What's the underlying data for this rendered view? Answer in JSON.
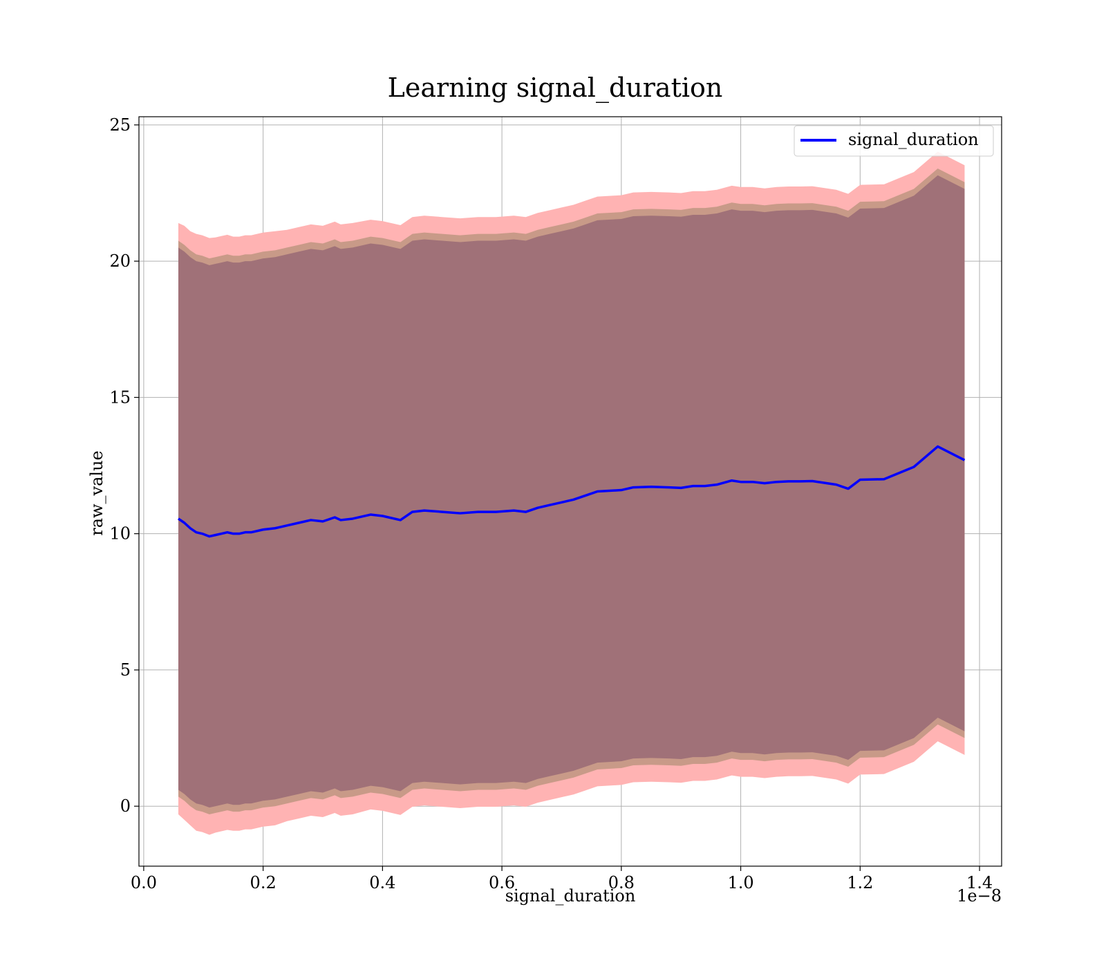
{
  "chart_data": {
    "type": "line",
    "title": "Learning signal_duration",
    "xlabel": "signal_duration",
    "ylabel": "raw_value",
    "x_offset_label": "1e−8",
    "xlim": [
      -0.008,
      1.437
    ],
    "ylim": [
      -2.2,
      25.3
    ],
    "xticks": [
      0.0,
      0.2,
      0.4,
      0.6,
      0.8,
      1.0,
      1.2,
      1.4
    ],
    "xtick_labels": [
      "0.0",
      "0.2",
      "0.4",
      "0.6",
      "0.8",
      "1.0",
      "1.2",
      "1.4"
    ],
    "yticks": [
      0,
      5,
      10,
      15,
      20,
      25
    ],
    "ytick_labels": [
      "0",
      "5",
      "10",
      "15",
      "20",
      "25"
    ],
    "grid": true,
    "legend": {
      "position": "upper right",
      "entries": [
        "signal_duration"
      ]
    },
    "colors": {
      "line": "#0000ff",
      "outer_band": "#ffb3b3",
      "middle_band": "#c89a88",
      "inner_band": "#a07178",
      "grid": "#b0b0b0"
    },
    "series": [
      {
        "name": "signal_duration",
        "x": [
          0.058,
          0.068,
          0.078,
          0.088,
          0.098,
          0.11,
          0.12,
          0.13,
          0.14,
          0.15,
          0.16,
          0.17,
          0.18,
          0.2,
          0.22,
          0.24,
          0.26,
          0.28,
          0.3,
          0.32,
          0.33,
          0.35,
          0.38,
          0.4,
          0.43,
          0.45,
          0.47,
          0.5,
          0.53,
          0.56,
          0.59,
          0.62,
          0.64,
          0.66,
          0.68,
          0.7,
          0.72,
          0.74,
          0.76,
          0.8,
          0.82,
          0.85,
          0.88,
          0.9,
          0.92,
          0.94,
          0.96,
          0.985,
          1.0,
          1.02,
          1.04,
          1.06,
          1.08,
          1.1,
          1.12,
          1.16,
          1.18,
          1.2,
          1.24,
          1.29,
          1.33,
          1.375
        ],
        "mean": [
          10.55,
          10.4,
          10.2,
          10.05,
          10.0,
          9.9,
          9.95,
          10.0,
          10.05,
          10.0,
          10.0,
          10.05,
          10.05,
          10.15,
          10.2,
          10.3,
          10.4,
          10.5,
          10.45,
          10.6,
          10.5,
          10.55,
          10.7,
          10.65,
          10.5,
          10.8,
          10.85,
          10.8,
          10.75,
          10.8,
          10.8,
          10.85,
          10.8,
          10.95,
          11.05,
          11.15,
          11.25,
          11.4,
          11.55,
          11.6,
          11.7,
          11.72,
          11.7,
          11.68,
          11.75,
          11.75,
          11.8,
          11.95,
          11.9,
          11.9,
          11.85,
          11.9,
          11.92,
          11.92,
          11.93,
          11.8,
          11.65,
          11.98,
          12.0,
          12.45,
          13.2,
          12.7
        ],
        "band_outer": [
          10.85,
          10.9,
          10.9,
          10.95,
          10.95,
          10.95,
          10.92,
          10.92,
          10.92,
          10.9,
          10.9,
          10.9,
          10.9,
          10.9,
          10.9,
          10.85,
          10.85,
          10.85,
          10.85,
          10.85,
          10.85,
          10.85,
          10.82,
          10.82,
          10.82,
          10.82,
          10.82,
          10.82,
          10.82,
          10.82,
          10.82,
          10.82,
          10.82,
          10.82,
          10.82,
          10.82,
          10.82,
          10.82,
          10.82,
          10.82,
          10.82,
          10.82,
          10.82,
          10.82,
          10.82,
          10.82,
          10.82,
          10.82,
          10.82,
          10.82,
          10.82,
          10.82,
          10.82,
          10.82,
          10.82,
          10.82,
          10.82,
          10.82,
          10.82,
          10.82,
          10.82,
          10.82
        ],
        "band_middle": [
          10.2,
          10.2,
          10.2,
          10.2,
          10.2,
          10.2,
          10.2,
          10.2,
          10.2,
          10.2,
          10.2,
          10.2,
          10.2,
          10.2,
          10.2,
          10.2,
          10.2,
          10.2,
          10.2,
          10.2,
          10.2,
          10.2,
          10.2,
          10.2,
          10.2,
          10.2,
          10.2,
          10.2,
          10.2,
          10.2,
          10.2,
          10.2,
          10.2,
          10.2,
          10.2,
          10.2,
          10.2,
          10.2,
          10.2,
          10.2,
          10.2,
          10.2,
          10.2,
          10.2,
          10.2,
          10.2,
          10.2,
          10.2,
          10.2,
          10.2,
          10.2,
          10.2,
          10.2,
          10.2,
          10.2,
          10.2,
          10.2,
          10.2,
          10.2,
          10.2,
          10.2,
          10.2
        ],
        "band_inner": [
          9.95,
          9.95,
          9.95,
          9.95,
          9.95,
          9.95,
          9.95,
          9.95,
          9.95,
          9.95,
          9.95,
          9.95,
          9.95,
          9.95,
          9.95,
          9.95,
          9.95,
          9.95,
          9.95,
          9.95,
          9.95,
          9.95,
          9.95,
          9.95,
          9.95,
          9.95,
          9.95,
          9.95,
          9.95,
          9.95,
          9.95,
          9.95,
          9.95,
          9.95,
          9.95,
          9.95,
          9.95,
          9.95,
          9.95,
          9.95,
          9.95,
          9.95,
          9.95,
          9.95,
          9.95,
          9.95,
          9.95,
          9.95,
          9.95,
          9.95,
          9.95,
          9.95,
          9.95,
          9.95,
          9.95,
          9.95,
          9.95,
          9.95,
          9.95,
          9.95,
          9.95,
          9.95
        ]
      }
    ]
  }
}
